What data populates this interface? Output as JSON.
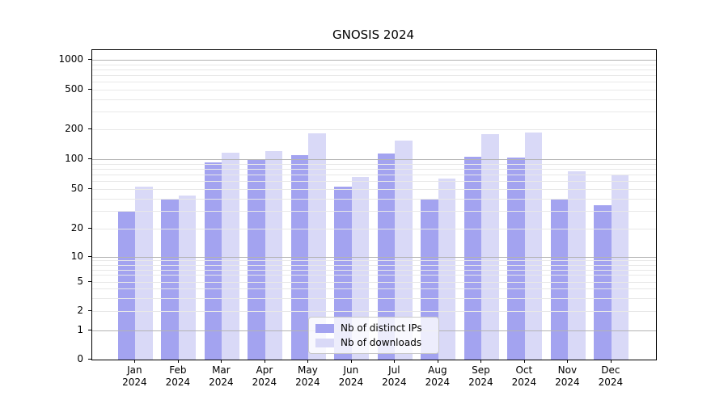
{
  "title": "GNOSIS 2024",
  "chart_data": {
    "type": "bar",
    "title": "GNOSIS 2024",
    "categories": [
      "Jan 2024",
      "Feb 2024",
      "Mar 2024",
      "Apr 2024",
      "May 2024",
      "Jun 2024",
      "Jul 2024",
      "Aug 2024",
      "Sep 2024",
      "Oct 2024",
      "Nov 2024",
      "Dec 2024"
    ],
    "series": [
      {
        "name": "Nb of distinct IPs",
        "color": "#a3a3f0",
        "values": [
          30,
          39,
          92,
          99,
          110,
          53,
          113,
          39,
          106,
          103,
          39,
          34
        ]
      },
      {
        "name": "Nb of downloads",
        "color": "#d9d9f7",
        "values": [
          53,
          43,
          117,
          121,
          181,
          66,
          155,
          63,
          178,
          185,
          76,
          68
        ]
      }
    ],
    "xlabel": "",
    "ylabel": "",
    "yscale": "symlog",
    "yticks": [
      0,
      1,
      2,
      5,
      10,
      20,
      50,
      100,
      200,
      500,
      1000
    ],
    "ylim": [
      0,
      1250
    ],
    "grid": true,
    "grid_color_major": "#b3b3b3",
    "grid_color_minor": "#e8e8e8",
    "legend_position": "lower center"
  }
}
